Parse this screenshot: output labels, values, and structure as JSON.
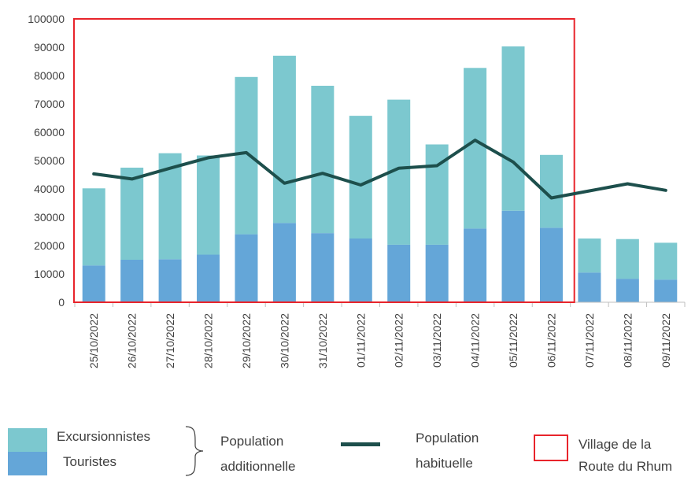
{
  "chart_data": {
    "type": "bar",
    "stacked": true,
    "categories": [
      "25/10/2022",
      "26/10/2022",
      "27/10/2022",
      "28/10/2022",
      "29/10/2022",
      "30/10/2022",
      "31/10/2022",
      "01/11/2022",
      "02/11/2022",
      "03/11/2022",
      "04/11/2022",
      "05/11/2022",
      "06/11/2022",
      "07/11/2022",
      "08/11/2022",
      "09/11/2022"
    ],
    "ylim": [
      0,
      100000
    ],
    "yticks": [
      "0",
      "10000",
      "20000",
      "30000",
      "40000",
      "50000",
      "60000",
      "70000",
      "80000",
      "90000",
      "100000"
    ],
    "series": [
      {
        "name": "Touristes",
        "kind": "bar",
        "values": [
          13000,
          15000,
          15200,
          16800,
          24000,
          28000,
          24400,
          22500,
          20300,
          20300,
          26000,
          32300,
          26300,
          10500,
          8300,
          8000
        ]
      },
      {
        "name": "Excursionnistes",
        "kind": "bar",
        "values": [
          27200,
          32500,
          37400,
          35000,
          55500,
          59000,
          52000,
          43300,
          51200,
          35400,
          56700,
          58000,
          25700,
          12000,
          14000,
          13000
        ]
      },
      {
        "name": "Population habituelle",
        "kind": "line",
        "values": [
          45300,
          43500,
          47300,
          51000,
          52800,
          42000,
          45500,
          41400,
          47300,
          48200,
          57200,
          49500,
          36800,
          39300,
          41800,
          39500
        ]
      }
    ],
    "highlight_range": {
      "from": "25/10/2022",
      "to": "06/11/2022"
    },
    "grid": false,
    "colors": {
      "touristes": "#64a6d8",
      "excursionnistes": "#7cc8cf",
      "line": "#1d4f4c",
      "highlight": "#e8242b",
      "axis": "#bfbfbf"
    }
  },
  "legend": {
    "excursionnistes": "Excursionnistes",
    "touristes": "Touristes",
    "pop_add_line1": "Population",
    "pop_add_line2": "additionnelle",
    "pop_hab_line1": "Population",
    "pop_hab_line2": "habituelle",
    "village_line1": "Village de la",
    "village_line2": "Route du Rhum"
  }
}
